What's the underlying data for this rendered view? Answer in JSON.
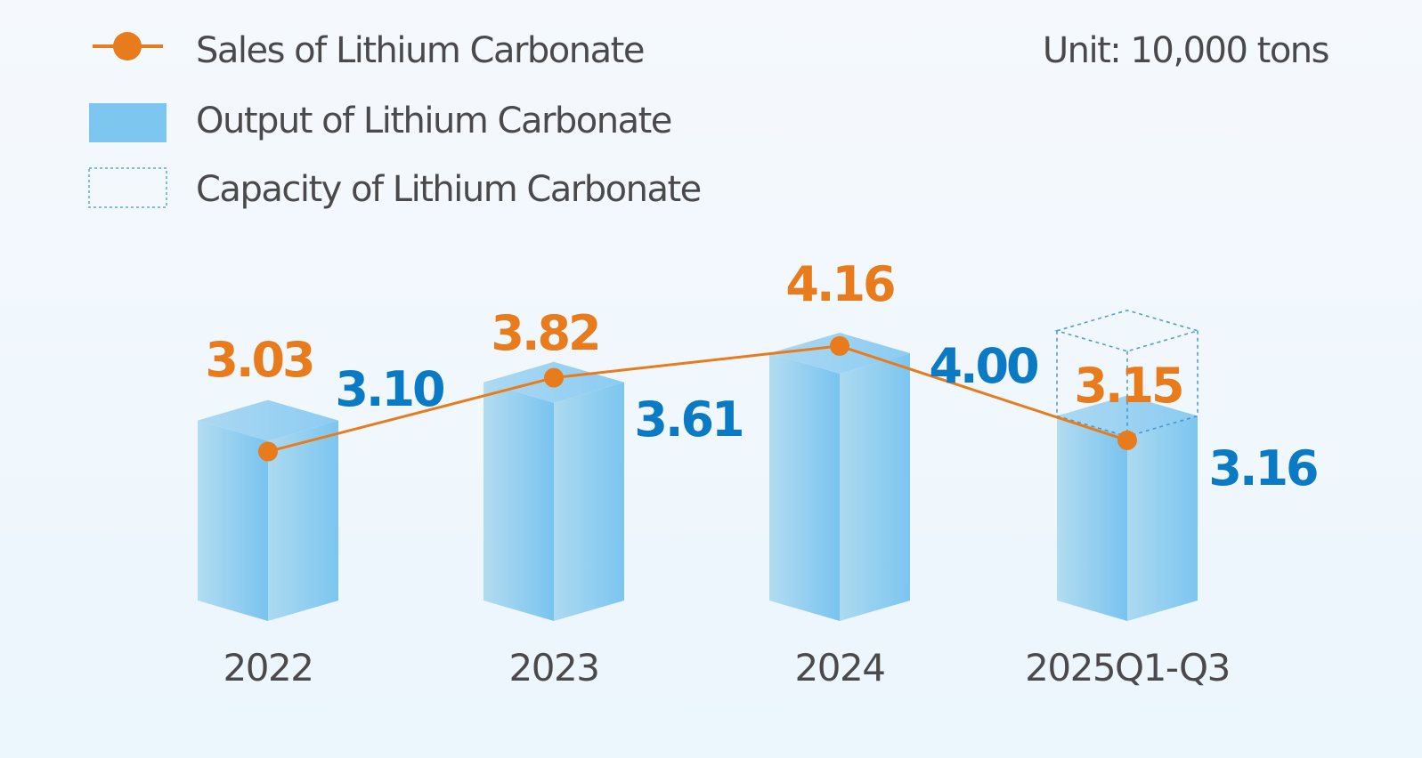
{
  "chart_data": {
    "type": "bar",
    "title": "",
    "unit_label": "Unit: 10,000 tons",
    "categories": [
      "2022",
      "2023",
      "2024",
      "2025Q1-Q3"
    ],
    "series": [
      {
        "name": "Sales of Lithium Carbonate",
        "type": "line",
        "color": "#e87b1c",
        "values": [
          3.03,
          3.82,
          4.16,
          3.15
        ],
        "labels": [
          "3.03",
          "3.82",
          "4.16",
          "3.15"
        ]
      },
      {
        "name": "Output of Lithium Carbonate",
        "type": "bar",
        "color": "#7cc6f0",
        "label_color": "#0a7ac5",
        "values": [
          3.1,
          3.61,
          4.0,
          3.16
        ],
        "labels": [
          "3.10",
          "3.61",
          "4.00",
          "3.16"
        ]
      },
      {
        "name": "Capacity of Lithium Carbonate",
        "type": "bar-outline",
        "color": "#3a8fcf",
        "values": [
          null,
          null,
          null,
          4.3
        ],
        "labels": [
          null,
          null,
          null,
          null
        ]
      }
    ],
    "legend": {
      "position": "top-left",
      "items": [
        {
          "label": "Sales of Lithium Carbonate",
          "symbol": "line-marker"
        },
        {
          "label": "Output of Lithium Carbonate",
          "symbol": "filled-rect"
        },
        {
          "label": "Capacity of Lithium Carbonate",
          "symbol": "dashed-rect"
        }
      ]
    },
    "grid": false,
    "xlabel": "",
    "ylabel": ""
  }
}
